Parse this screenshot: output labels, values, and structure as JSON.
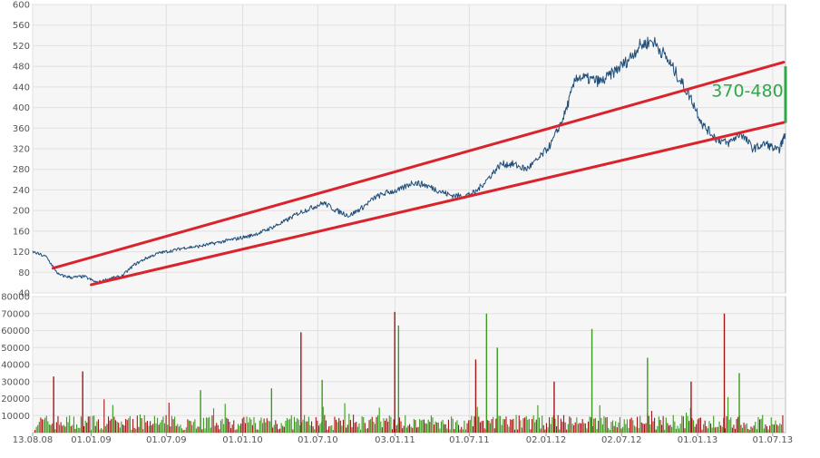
{
  "chart_data": [
    {
      "type": "line",
      "title": "",
      "xlabel": "",
      "ylabel": "",
      "ylim": [
        40,
        600
      ],
      "y_ticks": [
        40,
        80,
        120,
        160,
        200,
        240,
        280,
        320,
        360,
        400,
        440,
        480,
        520,
        560,
        600
      ],
      "x_tick_labels": [
        "13.08.08",
        "01.01.09",
        "01.07.09",
        "01.01.10",
        "01.07.10",
        "03.01.11",
        "01.07.11",
        "02.01.12",
        "02.07.12",
        "01.01.13",
        "01.07.13"
      ],
      "grid": true,
      "series_color": "#1f4e79",
      "x": [
        "2008-08-13",
        "2008-09-15",
        "2008-10-15",
        "2008-11-15",
        "2008-12-15",
        "2009-01-15",
        "2009-02-15",
        "2009-03-15",
        "2009-04-15",
        "2009-05-15",
        "2009-06-15",
        "2009-07-15",
        "2009-08-15",
        "2009-09-15",
        "2009-10-15",
        "2009-11-15",
        "2009-12-15",
        "2010-01-15",
        "2010-02-15",
        "2010-03-15",
        "2010-04-15",
        "2010-05-15",
        "2010-06-15",
        "2010-07-15",
        "2010-08-15",
        "2010-09-15",
        "2010-10-15",
        "2010-11-15",
        "2010-12-15",
        "2011-01-15",
        "2011-02-15",
        "2011-03-15",
        "2011-04-15",
        "2011-05-15",
        "2011-06-15",
        "2011-07-15",
        "2011-08-15",
        "2011-09-15",
        "2011-10-15",
        "2011-11-15",
        "2011-12-15",
        "2012-01-15",
        "2012-02-15",
        "2012-03-15",
        "2012-04-15",
        "2012-05-15",
        "2012-06-15",
        "2012-07-15",
        "2012-08-15",
        "2012-09-15",
        "2012-10-15",
        "2012-11-15",
        "2012-12-15",
        "2013-01-15",
        "2013-02-15",
        "2013-03-15",
        "2013-04-15",
        "2013-05-15",
        "2013-06-15",
        "2013-07-15",
        "2013-08-01"
      ],
      "values": [
        120,
        110,
        75,
        70,
        72,
        60,
        68,
        72,
        95,
        108,
        118,
        122,
        128,
        130,
        135,
        140,
        145,
        150,
        158,
        168,
        180,
        195,
        205,
        215,
        200,
        190,
        205,
        225,
        235,
        240,
        255,
        250,
        240,
        230,
        228,
        235,
        262,
        290,
        290,
        280,
        300,
        330,
        385,
        460,
        455,
        450,
        470,
        490,
        520,
        530,
        500,
        460,
        420,
        365,
        340,
        330,
        350,
        320,
        330,
        315,
        350
      ]
    },
    {
      "type": "bar",
      "title": "",
      "xlabel": "",
      "ylabel": "",
      "ylim": [
        0,
        80000
      ],
      "y_ticks": [
        10000,
        20000,
        30000,
        40000,
        50000,
        60000,
        70000,
        80000
      ],
      "x_tick_labels": [
        "13.08.08",
        "01.01.09",
        "01.07.09",
        "01.01.10",
        "01.07.10",
        "03.01.11",
        "01.07.11",
        "02.01.12",
        "02.07.12",
        "01.01.13",
        "01.07.13"
      ],
      "grid": true,
      "up_color": "#3c9a1e",
      "down_color": "#a31515",
      "spikes": [
        {
          "date": "2008-10-01",
          "value": 33000,
          "dir": "down"
        },
        {
          "date": "2008-12-10",
          "value": 36000,
          "dir": "down"
        },
        {
          "date": "2009-09-20",
          "value": 25000,
          "dir": "up"
        },
        {
          "date": "2010-03-10",
          "value": 26000,
          "dir": "up"
        },
        {
          "date": "2010-05-20",
          "value": 59000,
          "dir": "down"
        },
        {
          "date": "2010-07-10",
          "value": 31000,
          "dir": "up"
        },
        {
          "date": "2011-01-01",
          "value": 71000,
          "dir": "down"
        },
        {
          "date": "2011-01-10",
          "value": 63000,
          "dir": "up"
        },
        {
          "date": "2011-07-15",
          "value": 43000,
          "dir": "down"
        },
        {
          "date": "2011-08-10",
          "value": 70000,
          "dir": "up"
        },
        {
          "date": "2011-09-05",
          "value": 50000,
          "dir": "up"
        },
        {
          "date": "2012-01-20",
          "value": 30000,
          "dir": "down"
        },
        {
          "date": "2012-04-20",
          "value": 61000,
          "dir": "up"
        },
        {
          "date": "2012-09-01",
          "value": 44000,
          "dir": "up"
        },
        {
          "date": "2012-12-15",
          "value": 30000,
          "dir": "down"
        },
        {
          "date": "2013-03-05",
          "value": 70000,
          "dir": "down"
        },
        {
          "date": "2013-04-10",
          "value": 35000,
          "dir": "up"
        }
      ]
    }
  ],
  "trend_lines": {
    "color": "#d9232d",
    "upper": {
      "start": [
        "2008-10-01",
        88
      ],
      "end": [
        "2013-08-01",
        488
      ]
    },
    "lower": {
      "start": [
        "2009-01-01",
        56
      ],
      "end": [
        "2013-08-01",
        371
      ]
    }
  },
  "annotation": {
    "label": "370-480",
    "color": "#2fa84a",
    "range": [
      370,
      480
    ],
    "date": "2013-08-01"
  }
}
